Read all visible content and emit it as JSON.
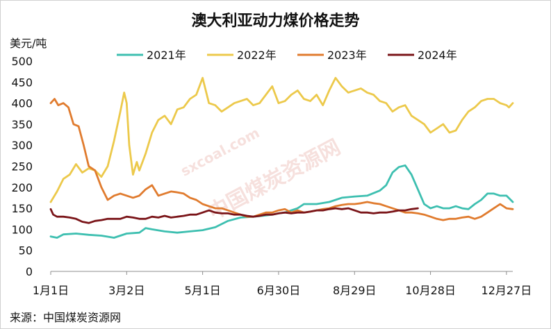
{
  "title": "澳大利亚动力煤价格走势",
  "unit_label": "美元/吨",
  "source_label": "来源：中国煤炭资源网",
  "watermark": {
    "text": "中国煤炭资源网",
    "url_text": "sxcoal.com"
  },
  "chart_data": {
    "type": "line",
    "title": "澳大利亚动力煤价格走势",
    "ylabel": "美元/吨",
    "ylim": [
      0,
      500
    ],
    "yticks": [
      0,
      50,
      100,
      150,
      200,
      250,
      300,
      350,
      400,
      450,
      500
    ],
    "xlim": [
      0,
      365
    ],
    "x_ticks": [
      {
        "label": "1月1日",
        "day": 0
      },
      {
        "label": "3月2日",
        "day": 60
      },
      {
        "label": "5月1日",
        "day": 120
      },
      {
        "label": "6月30日",
        "day": 180
      },
      {
        "label": "8月29日",
        "day": 240
      },
      {
        "label": "10月28日",
        "day": 300
      },
      {
        "label": "12月27日",
        "day": 360
      }
    ],
    "x_unit": "day of year",
    "grid": false,
    "legend_position": "top",
    "series": [
      {
        "name": "2021年",
        "color": "#3dbfb0",
        "x": [
          0,
          5,
          10,
          20,
          30,
          40,
          50,
          55,
          60,
          70,
          75,
          80,
          90,
          100,
          110,
          120,
          130,
          140,
          150,
          160,
          170,
          175,
          180,
          185,
          190,
          195,
          200,
          210,
          220,
          225,
          230,
          240,
          250,
          260,
          265,
          270,
          275,
          280,
          285,
          290,
          295,
          300,
          305,
          310,
          315,
          320,
          325,
          330,
          335,
          340,
          345,
          350,
          355,
          360,
          365
        ],
        "values": [
          83,
          80,
          88,
          90,
          87,
          85,
          80,
          85,
          90,
          92,
          103,
          100,
          95,
          92,
          95,
          98,
          105,
          120,
          128,
          130,
          133,
          135,
          138,
          140,
          145,
          150,
          160,
          160,
          165,
          170,
          175,
          178,
          180,
          192,
          205,
          235,
          248,
          252,
          230,
          195,
          160,
          150,
          155,
          150,
          150,
          155,
          150,
          148,
          160,
          170,
          185,
          185,
          180,
          180,
          165
        ]
      },
      {
        "name": "2022年",
        "color": "#ecc94b",
        "x": [
          0,
          5,
          10,
          15,
          20,
          25,
          30,
          35,
          40,
          45,
          50,
          55,
          58,
          60,
          62,
          65,
          68,
          70,
          75,
          80,
          85,
          90,
          95,
          100,
          105,
          110,
          115,
          120,
          125,
          130,
          135,
          140,
          145,
          150,
          155,
          160,
          165,
          170,
          175,
          180,
          185,
          190,
          195,
          200,
          205,
          210,
          215,
          220,
          225,
          230,
          235,
          240,
          245,
          250,
          255,
          260,
          265,
          270,
          275,
          280,
          285,
          290,
          295,
          300,
          305,
          310,
          315,
          320,
          325,
          330,
          335,
          340,
          345,
          350,
          355,
          360,
          362,
          365
        ],
        "values": [
          165,
          190,
          220,
          230,
          255,
          235,
          245,
          240,
          225,
          250,
          310,
          380,
          425,
          400,
          300,
          230,
          260,
          240,
          280,
          330,
          360,
          370,
          350,
          385,
          390,
          410,
          420,
          460,
          400,
          395,
          380,
          390,
          400,
          405,
          410,
          395,
          400,
          420,
          440,
          400,
          405,
          420,
          430,
          410,
          405,
          420,
          395,
          430,
          460,
          440,
          425,
          430,
          435,
          425,
          420,
          405,
          400,
          380,
          390,
          395,
          370,
          360,
          350,
          330,
          340,
          350,
          330,
          335,
          360,
          380,
          390,
          405,
          410,
          410,
          400,
          395,
          390,
          400
        ]
      },
      {
        "name": "2023年",
        "color": "#e07b2e",
        "x": [
          0,
          3,
          6,
          10,
          14,
          18,
          22,
          26,
          30,
          35,
          40,
          45,
          50,
          55,
          60,
          65,
          70,
          75,
          80,
          85,
          90,
          95,
          100,
          105,
          110,
          115,
          120,
          125,
          130,
          135,
          140,
          145,
          150,
          155,
          160,
          165,
          170,
          175,
          180,
          185,
          190,
          195,
          200,
          205,
          210,
          215,
          220,
          225,
          230,
          235,
          240,
          245,
          250,
          255,
          260,
          265,
          270,
          275,
          280,
          285,
          290,
          295,
          300,
          305,
          310,
          315,
          320,
          325,
          330,
          335,
          340,
          345,
          350,
          355,
          360,
          365
        ],
        "values": [
          400,
          410,
          395,
          400,
          390,
          350,
          345,
          300,
          250,
          240,
          200,
          170,
          180,
          185,
          180,
          175,
          180,
          195,
          205,
          180,
          185,
          190,
          188,
          185,
          175,
          170,
          160,
          155,
          150,
          150,
          145,
          140,
          135,
          130,
          130,
          135,
          140,
          140,
          145,
          148,
          140,
          145,
          140,
          142,
          145,
          148,
          150,
          155,
          158,
          160,
          160,
          162,
          165,
          162,
          160,
          155,
          150,
          145,
          140,
          140,
          138,
          135,
          130,
          125,
          122,
          125,
          125,
          128,
          130,
          125,
          130,
          140,
          150,
          160,
          150,
          148
        ]
      },
      {
        "name": "2024年",
        "color": "#7a1418",
        "x": [
          0,
          2,
          5,
          10,
          15,
          20,
          25,
          30,
          35,
          40,
          45,
          50,
          55,
          60,
          65,
          70,
          75,
          80,
          85,
          90,
          95,
          100,
          105,
          110,
          115,
          120,
          125,
          130,
          135,
          140,
          145,
          150,
          155,
          160,
          165,
          170,
          175,
          180,
          185,
          190,
          195,
          200,
          205,
          210,
          215,
          220,
          225,
          230,
          235,
          240,
          245,
          250,
          255,
          260,
          265,
          270,
          275,
          280,
          285,
          290
        ],
        "values": [
          148,
          135,
          130,
          130,
          128,
          125,
          118,
          115,
          120,
          122,
          125,
          125,
          125,
          130,
          128,
          125,
          125,
          130,
          128,
          132,
          128,
          130,
          132,
          135,
          135,
          140,
          145,
          140,
          138,
          138,
          135,
          135,
          132,
          130,
          132,
          135,
          135,
          138,
          140,
          138,
          140,
          140,
          142,
          145,
          145,
          148,
          150,
          148,
          150,
          145,
          140,
          140,
          138,
          140,
          140,
          142,
          145,
          145,
          148,
          150
        ]
      }
    ]
  }
}
